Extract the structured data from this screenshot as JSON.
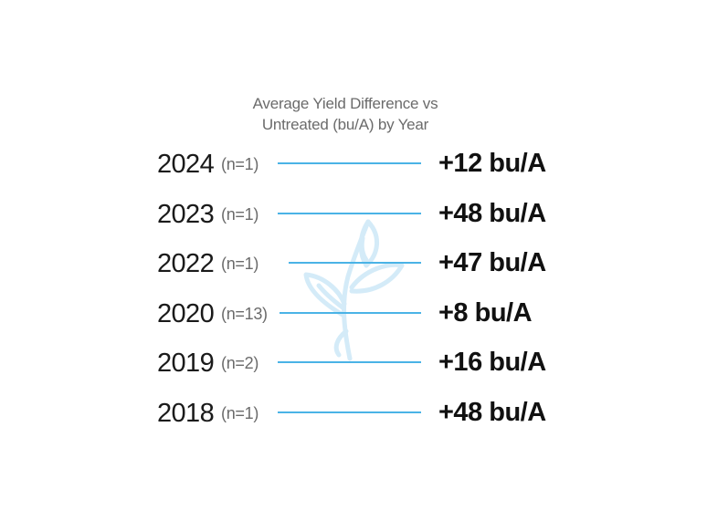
{
  "chart_data": {
    "type": "table",
    "title_lines": [
      "Average Yield Difference vs",
      "Untreated (bu/A) by Year"
    ],
    "rows": [
      {
        "year": "2024",
        "n": "(n=1)",
        "value": 12,
        "label": "+12 bu/A"
      },
      {
        "year": "2023",
        "n": "(n=1)",
        "value": 48,
        "label": "+48 bu/A"
      },
      {
        "year": "2022",
        "n": "(n=1)",
        "value": 47,
        "label": "+47 bu/A"
      },
      {
        "year": "2020",
        "n": "(n=13)",
        "value": 8,
        "label": "+8 bu/A"
      },
      {
        "year": "2019",
        "n": "(n=2)",
        "value": 16,
        "label": "+16 bu/A"
      },
      {
        "year": "2018",
        "n": "(n=1)",
        "value": 48,
        "label": "+48 bu/A"
      }
    ]
  },
  "colors": {
    "line": "#4ab3e6",
    "watermark": "#d4ebf8",
    "title": "#6b6b6b",
    "n_label": "#6b6b6b",
    "year": "#1a1a1a",
    "value": "#111111"
  },
  "watermark_icon": "plant-icon"
}
